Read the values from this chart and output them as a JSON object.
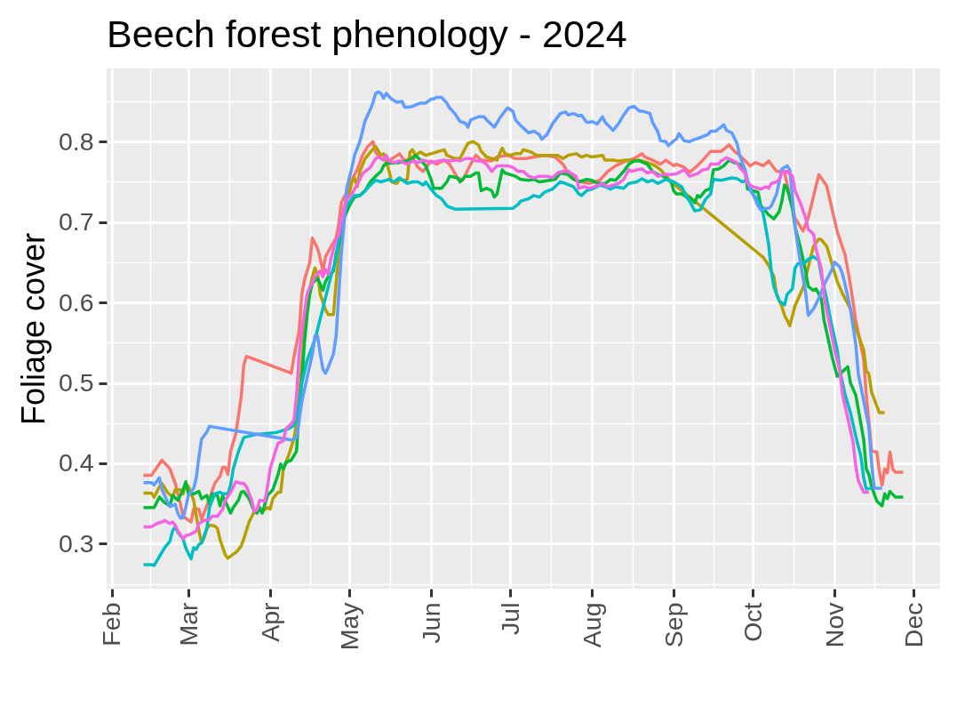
{
  "chart_data": {
    "type": "line",
    "title": "Beech forest phenology - 2024",
    "ylabel": "Foliage cover",
    "grid": true,
    "xlim": [
      "2024-01-30",
      "2024-12-11"
    ],
    "xticks": [
      {
        "value": "2024-02-01",
        "label": "Feb"
      },
      {
        "value": "2024-03-01",
        "label": "Mar"
      },
      {
        "value": "2024-04-01",
        "label": "Apr"
      },
      {
        "value": "2024-05-01",
        "label": "May"
      },
      {
        "value": "2024-06-01",
        "label": "Jun"
      },
      {
        "value": "2024-07-01",
        "label": "Jul"
      },
      {
        "value": "2024-08-01",
        "label": "Aug"
      },
      {
        "value": "2024-09-01",
        "label": "Sep"
      },
      {
        "value": "2024-10-01",
        "label": "Oct"
      },
      {
        "value": "2024-11-01",
        "label": "Nov"
      },
      {
        "value": "2024-12-01",
        "label": "Dec"
      }
    ],
    "ylim": [
      0.244,
      0.891
    ],
    "yticks": [
      0.3,
      0.4,
      0.5,
      0.6,
      0.7,
      0.8
    ],
    "series": [
      {
        "color": "#f8766d",
        "x": [
          "2024-02-13",
          "2024-02-16",
          "2024-02-20",
          "2024-02-23",
          "2024-02-25",
          "2024-02-27",
          "2024-02-28",
          "2024-03-02",
          "2024-03-03",
          "2024-03-05",
          "2024-03-06",
          "2024-03-09",
          "2024-03-11",
          "2024-03-13",
          "2024-03-14",
          "2024-03-15",
          "2024-03-16",
          "2024-03-17",
          "2024-03-19",
          "2024-03-21",
          "2024-03-22",
          "2024-03-23",
          "2024-04-09",
          "2024-04-10",
          "2024-04-12",
          "2024-04-13",
          "2024-04-14",
          "2024-04-16",
          "2024-04-17",
          "2024-04-19",
          "2024-04-20",
          "2024-04-21",
          "2024-04-22",
          "2024-04-24",
          "2024-04-26",
          "2024-04-27",
          "2024-04-28",
          "2024-04-29",
          "2024-05-01",
          "2024-05-02",
          "2024-05-04",
          "2024-05-06",
          "2024-05-08",
          "2024-05-10",
          "2024-05-11",
          "2024-05-13",
          "2024-05-16",
          "2024-05-20",
          "2024-05-22",
          "2024-05-25",
          "2024-05-27",
          "2024-05-29",
          "2024-06-01",
          "2024-06-03",
          "2024-06-06",
          "2024-06-08",
          "2024-06-11",
          "2024-06-13",
          "2024-06-16",
          "2024-06-18",
          "2024-06-20",
          "2024-06-24",
          "2024-06-26",
          "2024-06-30",
          "2024-07-03",
          "2024-07-07",
          "2024-07-10",
          "2024-07-14",
          "2024-07-18",
          "2024-07-21",
          "2024-07-23",
          "2024-07-26",
          "2024-07-28",
          "2024-07-31",
          "2024-08-04",
          "2024-08-07",
          "2024-08-10",
          "2024-08-14",
          "2024-08-17",
          "2024-08-20",
          "2024-08-21",
          "2024-08-24",
          "2024-08-27",
          "2024-08-29",
          "2024-09-01",
          "2024-09-02",
          "2024-09-05",
          "2024-09-07",
          "2024-09-10",
          "2024-09-12",
          "2024-09-15",
          "2024-09-19",
          "2024-09-22",
          "2024-09-24",
          "2024-09-26",
          "2024-09-30",
          "2024-10-02",
          "2024-10-05",
          "2024-10-07",
          "2024-10-10",
          "2024-10-13",
          "2024-10-15",
          "2024-10-17",
          "2024-10-20",
          "2024-10-22",
          "2024-10-26",
          "2024-10-29",
          "2024-11-02",
          "2024-11-05",
          "2024-11-07",
          "2024-11-09",
          "2024-11-12",
          "2024-11-13",
          "2024-11-14",
          "2024-11-15",
          "2024-11-17",
          "2024-11-18",
          "2024-11-19",
          "2024-11-20",
          "2024-11-21",
          "2024-11-22",
          "2024-11-23",
          "2024-11-24",
          "2024-11-27"
        ],
        "values": [
          0.385,
          0.385,
          0.404,
          0.393,
          0.375,
          0.349,
          0.334,
          0.327,
          0.343,
          0.343,
          0.33,
          0.356,
          0.375,
          0.384,
          0.395,
          0.395,
          0.386,
          0.415,
          0.437,
          0.482,
          0.522,
          0.533,
          0.512,
          0.532,
          0.565,
          0.61,
          0.628,
          0.65,
          0.68,
          0.667,
          0.654,
          0.639,
          0.657,
          0.669,
          0.68,
          0.698,
          0.724,
          0.731,
          0.742,
          0.753,
          0.765,
          0.783,
          0.794,
          0.8,
          0.787,
          0.779,
          0.776,
          0.785,
          0.776,
          0.781,
          0.768,
          0.763,
          0.776,
          0.772,
          0.777,
          0.772,
          0.755,
          0.752,
          0.772,
          0.783,
          0.777,
          0.776,
          0.781,
          0.783,
          0.779,
          0.779,
          0.781,
          0.783,
          0.781,
          0.772,
          0.761,
          0.752,
          0.75,
          0.748,
          0.752,
          0.763,
          0.77,
          0.776,
          0.779,
          0.785,
          0.781,
          0.777,
          0.772,
          0.777,
          0.77,
          0.772,
          0.768,
          0.762,
          0.77,
          0.777,
          0.788,
          0.788,
          0.796,
          0.788,
          0.783,
          0.77,
          0.774,
          0.77,
          0.776,
          0.763,
          0.763,
          0.731,
          0.705,
          0.689,
          0.705,
          0.759,
          0.745,
          0.688,
          0.659,
          0.622,
          0.578,
          0.53,
          0.485,
          0.452,
          0.415,
          0.414,
          0.389,
          0.373,
          0.393,
          0.388,
          0.414,
          0.393,
          0.389,
          0.389
        ]
      },
      {
        "color": "#b79f00",
        "x": [
          "2024-02-13",
          "2024-02-16",
          "2024-02-17",
          "2024-02-19",
          "2024-02-20",
          "2024-02-22",
          "2024-02-24",
          "2024-02-25",
          "2024-02-27",
          "2024-02-28",
          "2024-02-29",
          "2024-03-01",
          "2024-03-03",
          "2024-03-04",
          "2024-03-05",
          "2024-03-06",
          "2024-03-07",
          "2024-03-08",
          "2024-03-09",
          "2024-03-11",
          "2024-03-12",
          "2024-03-13",
          "2024-03-15",
          "2024-03-16",
          "2024-03-18",
          "2024-03-19",
          "2024-03-21",
          "2024-03-22",
          "2024-03-24",
          "2024-03-26",
          "2024-03-27",
          "2024-03-29",
          "2024-03-31",
          "2024-04-01",
          "2024-04-02",
          "2024-04-04",
          "2024-04-05",
          "2024-04-06",
          "2024-04-08",
          "2024-04-10",
          "2024-04-11",
          "2024-04-12",
          "2024-04-13",
          "2024-04-14",
          "2024-04-15",
          "2024-04-17",
          "2024-04-18",
          "2024-04-19",
          "2024-04-20",
          "2024-04-22",
          "2024-04-23",
          "2024-04-25",
          "2024-04-26",
          "2024-04-27",
          "2024-04-28",
          "2024-04-29",
          "2024-05-01",
          "2024-05-02",
          "2024-05-03",
          "2024-05-04",
          "2024-05-05",
          "2024-05-07",
          "2024-05-09",
          "2024-05-11",
          "2024-05-13",
          "2024-05-14",
          "2024-05-16",
          "2024-05-17",
          "2024-05-19",
          "2024-05-20",
          "2024-05-22",
          "2024-05-23",
          "2024-05-24",
          "2024-05-25",
          "2024-05-26",
          "2024-05-28",
          "2024-05-30",
          "2024-06-01",
          "2024-06-04",
          "2024-06-06",
          "2024-06-07",
          "2024-06-10",
          "2024-06-12",
          "2024-06-14",
          "2024-06-15",
          "2024-06-17",
          "2024-06-19",
          "2024-06-20",
          "2024-06-22",
          "2024-06-24",
          "2024-06-26",
          "2024-06-27",
          "2024-06-28",
          "2024-06-29",
          "2024-07-01",
          "2024-07-03",
          "2024-07-05",
          "2024-07-06",
          "2024-07-09",
          "2024-07-11",
          "2024-07-14",
          "2024-07-19",
          "2024-07-21",
          "2024-07-23",
          "2024-07-26",
          "2024-07-28",
          "2024-07-30",
          "2024-08-01",
          "2024-08-05",
          "2024-08-06",
          "2024-08-09",
          "2024-08-11",
          "2024-08-14",
          "2024-08-16",
          "2024-08-19",
          "2024-08-22",
          "2024-08-25",
          "2024-08-27",
          "2024-08-29",
          "2024-08-31",
          "2024-10-05",
          "2024-10-07",
          "2024-10-09",
          "2024-10-10",
          "2024-10-12",
          "2024-10-13",
          "2024-10-14",
          "2024-10-15",
          "2024-10-17",
          "2024-10-20",
          "2024-10-22",
          "2024-10-24",
          "2024-10-26",
          "2024-10-27",
          "2024-10-29",
          "2024-10-31",
          "2024-11-02",
          "2024-11-04",
          "2024-11-07",
          "2024-11-08",
          "2024-11-10",
          "2024-11-12",
          "2024-11-13",
          "2024-11-14",
          "2024-11-15",
          "2024-11-17",
          "2024-11-18",
          "2024-11-20"
        ],
        "values": [
          0.363,
          0.363,
          0.358,
          0.371,
          0.375,
          0.364,
          0.358,
          0.367,
          0.367,
          0.362,
          0.375,
          0.371,
          0.354,
          0.334,
          0.316,
          0.301,
          0.308,
          0.319,
          0.323,
          0.322,
          0.319,
          0.305,
          0.286,
          0.282,
          0.287,
          0.289,
          0.297,
          0.306,
          0.327,
          0.34,
          0.343,
          0.34,
          0.345,
          0.343,
          0.356,
          0.364,
          0.364,
          0.393,
          0.41,
          0.43,
          0.45,
          0.484,
          0.521,
          0.565,
          0.6,
          0.632,
          0.643,
          0.635,
          0.61,
          0.591,
          0.585,
          0.585,
          0.624,
          0.661,
          0.694,
          0.717,
          0.735,
          0.75,
          0.755,
          0.744,
          0.763,
          0.779,
          0.787,
          0.794,
          0.783,
          0.785,
          0.765,
          0.75,
          0.748,
          0.753,
          0.752,
          0.753,
          0.787,
          0.79,
          0.783,
          0.787,
          0.783,
          0.785,
          0.788,
          0.79,
          0.783,
          0.779,
          0.779,
          0.792,
          0.798,
          0.8,
          0.796,
          0.788,
          0.781,
          0.779,
          0.777,
          0.785,
          0.792,
          0.785,
          0.783,
          0.785,
          0.785,
          0.79,
          0.787,
          0.783,
          0.783,
          0.783,
          0.779,
          0.783,
          0.785,
          0.781,
          0.783,
          0.781,
          0.783,
          0.777,
          0.777,
          0.776,
          0.777,
          0.776,
          0.777,
          0.774,
          0.77,
          0.765,
          0.758,
          0.75,
          0.656,
          0.646,
          0.632,
          0.61,
          0.595,
          0.584,
          0.578,
          0.571,
          0.596,
          0.618,
          0.644,
          0.67,
          0.679,
          0.678,
          0.67,
          0.648,
          0.626,
          0.611,
          0.592,
          0.578,
          0.559,
          0.541,
          0.515,
          0.511,
          0.489,
          0.471,
          0.463,
          0.463
        ]
      },
      {
        "color": "#00ba38",
        "x": [
          "2024-02-13",
          "2024-02-17",
          "2024-02-19",
          "2024-02-21",
          "2024-02-23",
          "2024-02-24",
          "2024-02-26",
          "2024-02-28",
          "2024-02-29",
          "2024-03-01",
          "2024-03-03",
          "2024-03-05",
          "2024-03-06",
          "2024-03-08",
          "2024-03-09",
          "2024-03-10",
          "2024-03-12",
          "2024-03-13",
          "2024-03-14",
          "2024-03-17",
          "2024-03-18",
          "2024-03-20",
          "2024-03-21",
          "2024-03-22",
          "2024-03-24",
          "2024-03-26",
          "2024-03-27",
          "2024-03-28",
          "2024-03-29",
          "2024-03-30",
          "2024-03-31",
          "2024-04-02",
          "2024-04-04",
          "2024-04-05",
          "2024-04-06",
          "2024-04-07",
          "2024-04-09",
          "2024-04-11",
          "2024-04-12",
          "2024-04-13",
          "2024-04-14",
          "2024-04-15",
          "2024-04-16",
          "2024-04-17",
          "2024-04-19",
          "2024-04-21",
          "2024-04-22",
          "2024-04-23",
          "2024-04-25",
          "2024-04-26",
          "2024-04-28",
          "2024-04-29",
          "2024-05-01",
          "2024-05-02",
          "2024-05-03",
          "2024-05-05",
          "2024-05-07",
          "2024-05-09",
          "2024-05-11",
          "2024-05-13",
          "2024-05-14",
          "2024-05-15",
          "2024-05-16",
          "2024-05-20",
          "2024-05-23",
          "2024-05-25",
          "2024-05-26",
          "2024-05-28",
          "2024-05-30",
          "2024-06-01",
          "2024-06-02",
          "2024-06-05",
          "2024-06-07",
          "2024-06-08",
          "2024-06-11",
          "2024-06-12",
          "2024-06-14",
          "2024-06-16",
          "2024-06-18",
          "2024-06-19",
          "2024-06-20",
          "2024-06-22",
          "2024-06-24",
          "2024-06-25",
          "2024-06-26",
          "2024-06-28",
          "2024-06-29",
          "2024-07-01",
          "2024-07-03",
          "2024-07-05",
          "2024-07-08",
          "2024-07-10",
          "2024-07-12",
          "2024-07-16",
          "2024-07-18",
          "2024-07-20",
          "2024-07-23",
          "2024-07-25",
          "2024-07-27",
          "2024-07-30",
          "2024-08-01",
          "2024-08-03",
          "2024-08-06",
          "2024-08-08",
          "2024-08-10",
          "2024-08-13",
          "2024-08-15",
          "2024-08-17",
          "2024-08-19",
          "2024-08-22",
          "2024-08-24",
          "2024-08-26",
          "2024-08-28",
          "2024-08-31",
          "2024-09-01",
          "2024-09-02",
          "2024-09-04",
          "2024-09-06",
          "2024-09-07",
          "2024-09-09",
          "2024-09-10",
          "2024-09-11",
          "2024-09-13",
          "2024-09-15",
          "2024-09-16",
          "2024-09-18",
          "2024-09-20",
          "2024-09-22",
          "2024-09-24",
          "2024-09-26",
          "2024-09-28",
          "2024-09-29",
          "2024-10-01",
          "2024-10-03",
          "2024-10-04",
          "2024-10-05",
          "2024-10-07",
          "2024-10-09",
          "2024-10-11",
          "2024-10-12",
          "2024-10-13",
          "2024-10-14",
          "2024-10-16",
          "2024-10-17",
          "2024-10-19",
          "2024-10-21",
          "2024-10-22",
          "2024-10-24",
          "2024-10-25",
          "2024-10-27",
          "2024-10-28",
          "2024-10-30",
          "2024-10-31",
          "2024-11-02",
          "2024-11-03",
          "2024-11-05",
          "2024-11-06",
          "2024-11-07",
          "2024-11-09",
          "2024-11-10",
          "2024-11-12",
          "2024-11-13",
          "2024-11-14",
          "2024-11-15",
          "2024-11-17",
          "2024-11-19",
          "2024-11-20",
          "2024-11-21",
          "2024-11-22",
          "2024-11-24",
          "2024-11-27"
        ],
        "values": [
          0.345,
          0.345,
          0.358,
          0.351,
          0.347,
          0.36,
          0.354,
          0.367,
          0.377,
          0.362,
          0.362,
          0.365,
          0.356,
          0.36,
          0.349,
          0.362,
          0.36,
          0.347,
          0.36,
          0.338,
          0.345,
          0.354,
          0.364,
          0.365,
          0.356,
          0.34,
          0.338,
          0.345,
          0.338,
          0.349,
          0.36,
          0.367,
          0.386,
          0.399,
          0.393,
          0.401,
          0.404,
          0.415,
          0.466,
          0.502,
          0.55,
          0.584,
          0.61,
          0.624,
          0.63,
          0.615,
          0.626,
          0.632,
          0.639,
          0.661,
          0.683,
          0.705,
          0.72,
          0.726,
          0.731,
          0.733,
          0.739,
          0.75,
          0.757,
          0.763,
          0.77,
          0.773,
          0.773,
          0.774,
          0.776,
          0.779,
          0.783,
          0.777,
          0.77,
          0.753,
          0.742,
          0.742,
          0.75,
          0.757,
          0.755,
          0.75,
          0.757,
          0.757,
          0.761,
          0.761,
          0.739,
          0.742,
          0.739,
          0.731,
          0.735,
          0.765,
          0.761,
          0.759,
          0.757,
          0.753,
          0.752,
          0.753,
          0.75,
          0.752,
          0.753,
          0.761,
          0.759,
          0.753,
          0.75,
          0.753,
          0.752,
          0.748,
          0.748,
          0.753,
          0.752,
          0.763,
          0.772,
          0.776,
          0.776,
          0.772,
          0.763,
          0.759,
          0.757,
          0.75,
          0.739,
          0.735,
          0.735,
          0.731,
          0.731,
          0.724,
          0.733,
          0.731,
          0.739,
          0.742,
          0.765,
          0.766,
          0.77,
          0.777,
          0.774,
          0.772,
          0.765,
          0.741,
          0.739,
          0.737,
          0.72,
          0.717,
          0.709,
          0.704,
          0.713,
          0.726,
          0.746,
          0.742,
          0.717,
          0.694,
          0.669,
          0.639,
          0.62,
          0.615,
          0.617,
          0.604,
          0.578,
          0.548,
          0.533,
          0.508,
          0.511,
          0.517,
          0.52,
          0.5,
          0.485,
          0.467,
          0.43,
          0.393,
          0.386,
          0.371,
          0.353,
          0.347,
          0.362,
          0.356,
          0.365,
          0.358,
          0.358
        ]
      },
      {
        "color": "#00bfc4",
        "x": [
          "2024-02-13",
          "2024-02-16",
          "2024-02-17",
          "2024-02-19",
          "2024-02-21",
          "2024-02-23",
          "2024-02-24",
          "2024-02-25",
          "2024-02-26",
          "2024-02-28",
          "2024-02-29",
          "2024-03-02",
          "2024-03-03",
          "2024-03-04",
          "2024-03-05",
          "2024-03-06",
          "2024-03-08",
          "2024-03-09",
          "2024-03-10",
          "2024-03-11",
          "2024-03-13",
          "2024-03-14",
          "2024-03-16",
          "2024-03-17",
          "2024-03-18",
          "2024-03-20",
          "2024-03-22",
          "2024-03-23",
          "2024-03-27",
          "2024-04-03",
          "2024-04-08",
          "2024-04-10",
          "2024-04-12",
          "2024-04-13",
          "2024-04-15",
          "2024-04-18",
          "2024-04-20",
          "2024-04-22",
          "2024-04-24",
          "2024-04-26",
          "2024-04-27",
          "2024-04-28",
          "2024-04-30",
          "2024-05-02",
          "2024-05-03",
          "2024-05-05",
          "2024-05-07",
          "2024-05-09",
          "2024-05-11",
          "2024-05-13",
          "2024-05-16",
          "2024-05-18",
          "2024-05-20",
          "2024-05-23",
          "2024-05-25",
          "2024-05-27",
          "2024-05-29",
          "2024-05-30",
          "2024-06-01",
          "2024-06-03",
          "2024-06-05",
          "2024-06-07",
          "2024-06-10",
          "2024-07-02",
          "2024-07-04",
          "2024-07-05",
          "2024-07-08",
          "2024-07-10",
          "2024-07-12",
          "2024-07-14",
          "2024-07-17",
          "2024-07-20",
          "2024-07-22",
          "2024-07-25",
          "2024-07-27",
          "2024-07-28",
          "2024-07-30",
          "2024-08-01",
          "2024-08-04",
          "2024-08-06",
          "2024-08-08",
          "2024-08-10",
          "2024-08-13",
          "2024-08-15",
          "2024-08-18",
          "2024-08-20",
          "2024-08-22",
          "2024-08-24",
          "2024-08-26",
          "2024-08-29",
          "2024-09-01",
          "2024-09-04",
          "2024-09-06",
          "2024-09-07",
          "2024-09-09",
          "2024-09-11",
          "2024-09-13",
          "2024-09-15",
          "2024-09-16",
          "2024-09-19",
          "2024-09-23",
          "2024-09-25",
          "2024-09-27",
          "2024-09-29",
          "2024-09-30",
          "2024-10-01",
          "2024-10-02",
          "2024-10-04",
          "2024-10-05",
          "2024-10-06",
          "2024-10-07",
          "2024-10-08",
          "2024-10-09",
          "2024-10-11",
          "2024-10-13",
          "2024-10-14",
          "2024-10-16",
          "2024-10-17",
          "2024-10-18",
          "2024-10-21",
          "2024-10-22",
          "2024-10-24",
          "2024-10-26",
          "2024-10-27",
          "2024-10-29",
          "2024-10-31",
          "2024-11-02",
          "2024-11-03",
          "2024-11-05",
          "2024-11-07",
          "2024-11-09",
          "2024-11-11",
          "2024-11-12",
          "2024-11-13",
          "2024-11-15"
        ],
        "values": [
          0.274,
          0.274,
          0.273,
          0.284,
          0.295,
          0.303,
          0.316,
          0.321,
          0.314,
          0.306,
          0.295,
          0.281,
          0.295,
          0.293,
          0.299,
          0.301,
          0.319,
          0.345,
          0.354,
          0.362,
          0.364,
          0.362,
          0.362,
          0.373,
          0.393,
          0.415,
          0.432,
          0.433,
          0.436,
          0.438,
          0.443,
          0.447,
          0.473,
          0.499,
          0.528,
          0.554,
          0.58,
          0.606,
          0.632,
          0.654,
          0.68,
          0.702,
          0.72,
          0.729,
          0.733,
          0.733,
          0.739,
          0.746,
          0.752,
          0.75,
          0.753,
          0.75,
          0.755,
          0.748,
          0.75,
          0.75,
          0.746,
          0.75,
          0.741,
          0.733,
          0.729,
          0.72,
          0.716,
          0.717,
          0.722,
          0.726,
          0.729,
          0.733,
          0.731,
          0.737,
          0.741,
          0.75,
          0.748,
          0.744,
          0.735,
          0.733,
          0.739,
          0.741,
          0.746,
          0.744,
          0.741,
          0.744,
          0.742,
          0.748,
          0.75,
          0.754,
          0.75,
          0.752,
          0.748,
          0.753,
          0.75,
          0.744,
          0.731,
          0.726,
          0.714,
          0.715,
          0.728,
          0.735,
          0.753,
          0.752,
          0.755,
          0.754,
          0.75,
          0.752,
          0.742,
          0.735,
          0.731,
          0.72,
          0.709,
          0.691,
          0.672,
          0.639,
          0.619,
          0.602,
          0.597,
          0.61,
          0.617,
          0.643,
          0.648,
          0.65,
          0.654,
          0.657,
          0.652,
          0.633,
          0.604,
          0.57,
          0.541,
          0.515,
          0.485,
          0.463,
          0.434,
          0.408,
          0.382,
          0.368,
          0.369
        ]
      },
      {
        "color": "#619cff",
        "x": [
          "2024-02-13",
          "2024-02-16",
          "2024-02-17",
          "2024-02-19",
          "2024-02-20",
          "2024-02-22",
          "2024-02-23",
          "2024-02-25",
          "2024-02-26",
          "2024-02-27",
          "2024-02-28",
          "2024-02-29",
          "2024-03-01",
          "2024-03-03",
          "2024-03-04",
          "2024-03-05",
          "2024-03-06",
          "2024-03-08",
          "2024-03-09",
          "2024-04-09",
          "2024-04-11",
          "2024-04-12",
          "2024-04-13",
          "2024-04-15",
          "2024-04-17",
          "2024-04-18",
          "2024-04-19",
          "2024-04-20",
          "2024-04-21",
          "2024-04-22",
          "2024-04-23",
          "2024-04-25",
          "2024-04-26",
          "2024-04-27",
          "2024-04-28",
          "2024-04-29",
          "2024-04-30",
          "2024-05-02",
          "2024-05-03",
          "2024-05-05",
          "2024-05-06",
          "2024-05-07",
          "2024-05-09",
          "2024-05-10",
          "2024-05-11",
          "2024-05-12",
          "2024-05-13",
          "2024-05-14",
          "2024-05-15",
          "2024-05-17",
          "2024-05-19",
          "2024-05-21",
          "2024-05-22",
          "2024-05-24",
          "2024-05-25",
          "2024-05-28",
          "2024-05-30",
          "2024-06-01",
          "2024-06-02",
          "2024-06-03",
          "2024-06-05",
          "2024-06-07",
          "2024-06-08",
          "2024-06-10",
          "2024-06-12",
          "2024-06-14",
          "2024-06-15",
          "2024-06-16",
          "2024-06-19",
          "2024-06-21",
          "2024-06-23",
          "2024-06-25",
          "2024-06-27",
          "2024-06-29",
          "2024-06-30",
          "2024-07-02",
          "2024-07-03",
          "2024-07-05",
          "2024-07-08",
          "2024-07-10",
          "2024-07-12",
          "2024-07-13",
          "2024-07-15",
          "2024-07-17",
          "2024-07-20",
          "2024-07-22",
          "2024-07-23",
          "2024-07-25",
          "2024-07-27",
          "2024-07-28",
          "2024-07-30",
          "2024-07-31",
          "2024-08-01",
          "2024-08-03",
          "2024-08-05",
          "2024-08-06",
          "2024-08-09",
          "2024-08-11",
          "2024-08-13",
          "2024-08-15",
          "2024-08-17",
          "2024-08-19",
          "2024-08-20",
          "2024-08-23",
          "2024-08-24",
          "2024-08-26",
          "2024-08-27",
          "2024-08-29",
          "2024-08-30",
          "2024-09-01",
          "2024-09-02",
          "2024-09-03",
          "2024-09-05",
          "2024-09-07",
          "2024-09-09",
          "2024-09-11",
          "2024-09-14",
          "2024-09-15",
          "2024-09-17",
          "2024-09-18",
          "2024-09-20",
          "2024-09-21",
          "2024-09-23",
          "2024-09-25",
          "2024-09-26",
          "2024-09-28",
          "2024-09-30",
          "2024-10-01",
          "2024-10-03",
          "2024-10-04",
          "2024-10-06",
          "2024-10-07",
          "2024-10-08",
          "2024-10-10",
          "2024-10-11",
          "2024-10-12",
          "2024-10-14",
          "2024-10-15",
          "2024-10-16",
          "2024-10-17",
          "2024-10-19",
          "2024-10-21",
          "2024-10-22",
          "2024-10-24",
          "2024-10-26",
          "2024-10-28",
          "2024-10-31",
          "2024-11-01",
          "2024-11-03",
          "2024-11-04",
          "2024-11-05",
          "2024-11-07",
          "2024-11-09",
          "2024-11-10",
          "2024-11-12",
          "2024-11-14",
          "2024-11-15",
          "2024-11-16",
          "2024-11-19"
        ],
        "values": [
          0.376,
          0.376,
          0.373,
          0.382,
          0.367,
          0.353,
          0.346,
          0.349,
          0.338,
          0.332,
          0.332,
          0.345,
          0.36,
          0.369,
          0.382,
          0.408,
          0.43,
          0.439,
          0.446,
          0.429,
          0.432,
          0.454,
          0.477,
          0.506,
          0.536,
          0.558,
          0.558,
          0.536,
          0.517,
          0.512,
          0.519,
          0.536,
          0.558,
          0.61,
          0.661,
          0.698,
          0.742,
          0.768,
          0.783,
          0.8,
          0.813,
          0.826,
          0.84,
          0.849,
          0.86,
          0.862,
          0.86,
          0.854,
          0.86,
          0.853,
          0.849,
          0.85,
          0.843,
          0.843,
          0.844,
          0.848,
          0.848,
          0.853,
          0.853,
          0.855,
          0.855,
          0.848,
          0.842,
          0.835,
          0.825,
          0.823,
          0.818,
          0.827,
          0.831,
          0.831,
          0.824,
          0.818,
          0.829,
          0.838,
          0.842,
          0.838,
          0.827,
          0.82,
          0.811,
          0.813,
          0.809,
          0.803,
          0.809,
          0.822,
          0.835,
          0.837,
          0.833,
          0.835,
          0.832,
          0.833,
          0.824,
          0.824,
          0.825,
          0.822,
          0.831,
          0.824,
          0.814,
          0.822,
          0.833,
          0.842,
          0.844,
          0.838,
          0.838,
          0.835,
          0.824,
          0.812,
          0.801,
          0.8,
          0.795,
          0.801,
          0.803,
          0.81,
          0.801,
          0.8,
          0.803,
          0.805,
          0.809,
          0.813,
          0.813,
          0.816,
          0.821,
          0.814,
          0.811,
          0.798,
          0.783,
          0.765,
          0.739,
          0.735,
          0.72,
          0.715,
          0.717,
          0.717,
          0.72,
          0.735,
          0.75,
          0.766,
          0.77,
          0.765,
          0.731,
          0.694,
          0.65,
          0.613,
          0.584,
          0.592,
          0.605,
          0.622,
          0.641,
          0.65,
          0.644,
          0.635,
          0.622,
          0.592,
          0.548,
          0.511,
          0.478,
          0.445,
          0.401,
          0.369,
          0.369
        ]
      },
      {
        "color": "#f564e3",
        "x": [
          "2024-02-13",
          "2024-02-16",
          "2024-02-18",
          "2024-02-20",
          "2024-02-21",
          "2024-02-23",
          "2024-02-24",
          "2024-02-25",
          "2024-02-26",
          "2024-02-28",
          "2024-02-29",
          "2024-03-02",
          "2024-03-04",
          "2024-03-05",
          "2024-03-07",
          "2024-03-09",
          "2024-03-10",
          "2024-03-12",
          "2024-03-14",
          "2024-03-15",
          "2024-03-17",
          "2024-03-19",
          "2024-03-21",
          "2024-03-22",
          "2024-03-23",
          "2024-03-25",
          "2024-03-26",
          "2024-03-27",
          "2024-03-28",
          "2024-03-30",
          "2024-03-31",
          "2024-04-01",
          "2024-04-03",
          "2024-04-04",
          "2024-04-06",
          "2024-04-07",
          "2024-04-09",
          "2024-04-10",
          "2024-04-11",
          "2024-04-12",
          "2024-04-13",
          "2024-04-14",
          "2024-04-15",
          "2024-04-16",
          "2024-04-17",
          "2024-04-18",
          "2024-04-20",
          "2024-04-21",
          "2024-04-22",
          "2024-04-23",
          "2024-04-24",
          "2024-04-26",
          "2024-04-27",
          "2024-04-28",
          "2024-04-29",
          "2024-04-30",
          "2024-05-02",
          "2024-05-03",
          "2024-05-05",
          "2024-05-06",
          "2024-05-07",
          "2024-05-09",
          "2024-05-11",
          "2024-05-12",
          "2024-05-14",
          "2024-05-15",
          "2024-05-16",
          "2024-05-18",
          "2024-05-20",
          "2024-05-23",
          "2024-05-25",
          "2024-05-27",
          "2024-05-29",
          "2024-06-01",
          "2024-06-04",
          "2024-06-06",
          "2024-06-08",
          "2024-06-11",
          "2024-06-12",
          "2024-06-14",
          "2024-06-16",
          "2024-06-18",
          "2024-06-20",
          "2024-06-22",
          "2024-06-24",
          "2024-06-26",
          "2024-06-28",
          "2024-06-30",
          "2024-07-02",
          "2024-07-04",
          "2024-07-06",
          "2024-07-08",
          "2024-07-10",
          "2024-07-12",
          "2024-07-15",
          "2024-07-17",
          "2024-07-19",
          "2024-07-21",
          "2024-07-23",
          "2024-07-26",
          "2024-07-27",
          "2024-07-29",
          "2024-07-31",
          "2024-08-02",
          "2024-08-05",
          "2024-08-07",
          "2024-08-09",
          "2024-08-11",
          "2024-08-13",
          "2024-08-15",
          "2024-08-16",
          "2024-08-18",
          "2024-08-20",
          "2024-08-22",
          "2024-08-24",
          "2024-08-26",
          "2024-08-28",
          "2024-08-31",
          "2024-09-02",
          "2024-09-05",
          "2024-09-06",
          "2024-09-07",
          "2024-09-10",
          "2024-09-12",
          "2024-09-14",
          "2024-09-15",
          "2024-09-18",
          "2024-09-19",
          "2024-09-21",
          "2024-09-23",
          "2024-09-25",
          "2024-09-26",
          "2024-09-28",
          "2024-09-29",
          "2024-10-01",
          "2024-10-03",
          "2024-10-04",
          "2024-10-06",
          "2024-10-07",
          "2024-10-08",
          "2024-10-10",
          "2024-10-11",
          "2024-10-12",
          "2024-10-14",
          "2024-10-16",
          "2024-10-17",
          "2024-10-19",
          "2024-10-21",
          "2024-10-22",
          "2024-10-24",
          "2024-10-25",
          "2024-10-27",
          "2024-10-28",
          "2024-10-30",
          "2024-11-01",
          "2024-11-03",
          "2024-11-04",
          "2024-11-06",
          "2024-11-08",
          "2024-11-09",
          "2024-11-10",
          "2024-11-12",
          "2024-11-14"
        ],
        "values": [
          0.321,
          0.321,
          0.325,
          0.327,
          0.329,
          0.325,
          0.327,
          0.323,
          0.316,
          0.306,
          0.31,
          0.312,
          0.316,
          0.325,
          0.329,
          0.33,
          0.334,
          0.334,
          0.343,
          0.354,
          0.364,
          0.377,
          0.375,
          0.375,
          0.371,
          0.354,
          0.34,
          0.342,
          0.354,
          0.353,
          0.371,
          0.393,
          0.415,
          0.425,
          0.428,
          0.443,
          0.449,
          0.454,
          0.484,
          0.536,
          0.565,
          0.587,
          0.61,
          0.619,
          0.624,
          0.632,
          0.639,
          0.632,
          0.641,
          0.635,
          0.654,
          0.678,
          0.683,
          0.702,
          0.717,
          0.728,
          0.735,
          0.741,
          0.753,
          0.76,
          0.763,
          0.768,
          0.779,
          0.781,
          0.777,
          0.783,
          0.776,
          0.774,
          0.776,
          0.772,
          0.776,
          0.774,
          0.777,
          0.774,
          0.776,
          0.777,
          0.776,
          0.777,
          0.776,
          0.779,
          0.779,
          0.776,
          0.776,
          0.772,
          0.763,
          0.77,
          0.77,
          0.77,
          0.768,
          0.763,
          0.763,
          0.757,
          0.755,
          0.757,
          0.757,
          0.755,
          0.761,
          0.763,
          0.763,
          0.757,
          0.742,
          0.744,
          0.742,
          0.744,
          0.748,
          0.744,
          0.746,
          0.748,
          0.753,
          0.765,
          0.763,
          0.765,
          0.766,
          0.761,
          0.763,
          0.757,
          0.759,
          0.759,
          0.76,
          0.765,
          0.761,
          0.757,
          0.76,
          0.765,
          0.766,
          0.772,
          0.772,
          0.776,
          0.78,
          0.777,
          0.774,
          0.768,
          0.761,
          0.748,
          0.744,
          0.742,
          0.741,
          0.744,
          0.742,
          0.748,
          0.75,
          0.753,
          0.761,
          0.763,
          0.757,
          0.739,
          0.724,
          0.705,
          0.691,
          0.685,
          0.666,
          0.641,
          0.607,
          0.574,
          0.541,
          0.515,
          0.485,
          0.456,
          0.426,
          0.397,
          0.378,
          0.364,
          0.364
        ]
      }
    ]
  }
}
